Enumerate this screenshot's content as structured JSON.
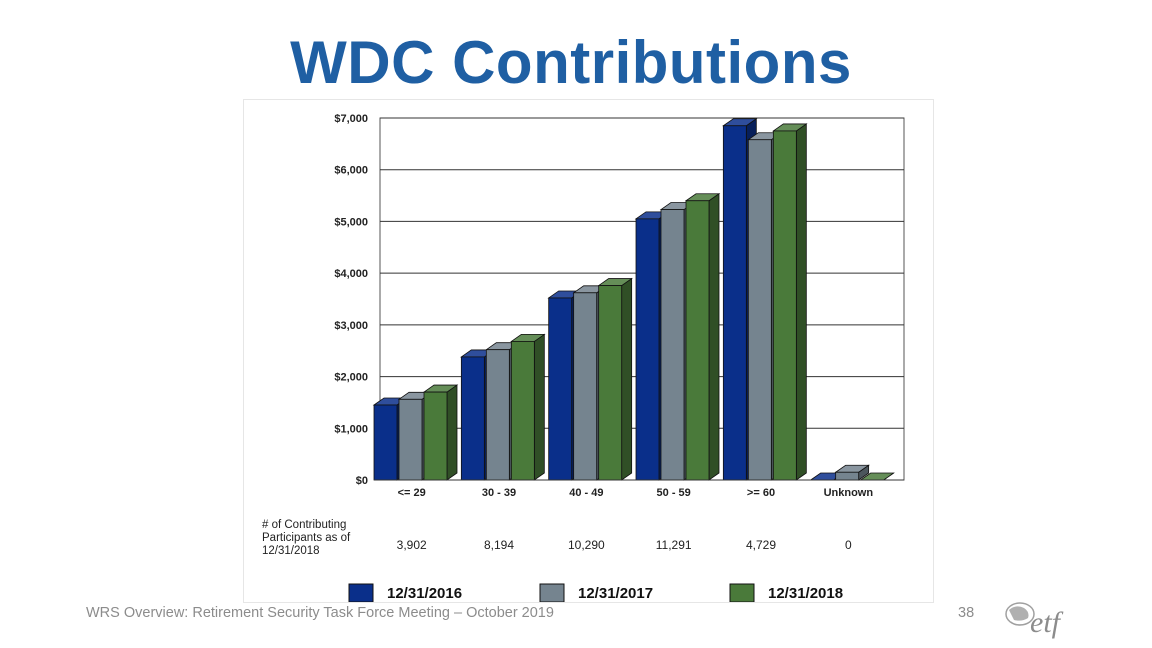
{
  "slide": {
    "title": "WDC Contributions",
    "footer": "WRS Overview: Retirement Security Task Force Meeting – October 2019",
    "page_number": "38",
    "logo_text": "etf"
  },
  "chart_data": {
    "type": "bar",
    "categories": [
      "<= 29",
      "30 - 39",
      "40 - 49",
      "50 - 59",
      ">= 60",
      "Unknown"
    ],
    "series": [
      {
        "name": "12/31/2016",
        "values": [
          1450,
          2380,
          3520,
          5050,
          6850,
          0
        ],
        "color": "#0a2f8a"
      },
      {
        "name": "12/31/2017",
        "values": [
          1560,
          2520,
          3620,
          5230,
          6580,
          150
        ],
        "color": "#75848f"
      },
      {
        "name": "12/31/2018",
        "values": [
          1700,
          2680,
          3760,
          5400,
          6750,
          0
        ],
        "color": "#4a7a3a"
      }
    ],
    "ylim": [
      0,
      7000
    ],
    "y_ticks": [
      0,
      1000,
      2000,
      3000,
      4000,
      5000,
      6000,
      7000
    ],
    "y_tick_labels": [
      "$0",
      "$1,000",
      "$2,000",
      "$3,000",
      "$4,000",
      "$5,000",
      "$6,000",
      "$7,000"
    ],
    "grid": true,
    "legend_position": "bottom",
    "participants": {
      "label": [
        "# of Contributing",
        "Participants as of",
        "12/31/2018"
      ],
      "values": [
        "3,902",
        "8,194",
        "10,290",
        "11,291",
        "4,729",
        "0"
      ]
    }
  }
}
